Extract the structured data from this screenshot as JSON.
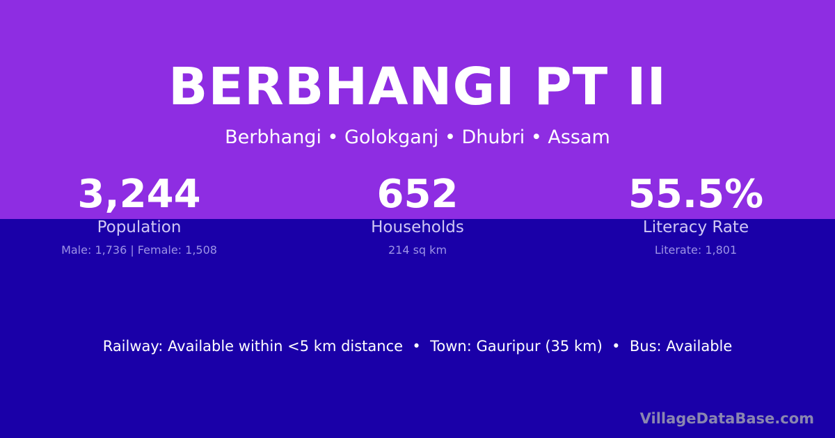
{
  "colors": {
    "top_background": "#8e2de2",
    "bottom_background": "#1a00a8"
  },
  "title": "BERBHANGI PT II",
  "location": "Berbhangi • Golokganj • Dhubri • Assam",
  "stats": [
    {
      "value": "3,244",
      "label": "Population",
      "detail": "Male: 1,736 | Female: 1,508"
    },
    {
      "value": "652",
      "label": "Households",
      "detail": "214 sq km"
    },
    {
      "value": "55.5%",
      "label": "Literacy Rate",
      "detail": "Literate: 1,801"
    }
  ],
  "facts": "Railway: Available within <5 km distance  •  Town: Gauripur (35 km)  •  Bus: Available",
  "watermark": "VillageDataBase.com"
}
